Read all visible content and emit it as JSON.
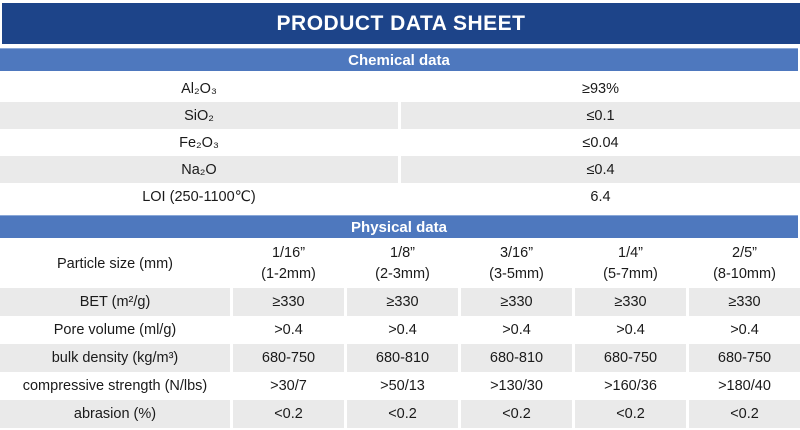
{
  "title": "PRODUCT DATA SHEET",
  "colors": {
    "title_bg": "#1d4489",
    "section_bg": "#4e78be",
    "row_alt_bg": "#eaeaea",
    "text": "#1a1a1a",
    "header_text": "#ffffff"
  },
  "chemical": {
    "header": "Chemical data",
    "rows": [
      {
        "label": "Al₂O₃",
        "value": "≥93%"
      },
      {
        "label": "SiO₂",
        "value": "≤0.1"
      },
      {
        "label": "Fe₂O₃",
        "value": "≤0.04"
      },
      {
        "label": "Na₂O",
        "value": "≤0.4"
      },
      {
        "label": "LOI (250-1100℃)",
        "value": "6.4"
      }
    ]
  },
  "physical": {
    "header": "Physical data",
    "size_row_label": "Particle size (mm)",
    "sizes": [
      {
        "inch": "1/16”",
        "mm": "(1-2mm)"
      },
      {
        "inch": "1/8”",
        "mm": "(2-3mm)"
      },
      {
        "inch": "3/16”",
        "mm": "(3-5mm)"
      },
      {
        "inch": "1/4”",
        "mm": "(5-7mm)"
      },
      {
        "inch": "2/5”",
        "mm": "(8-10mm)"
      }
    ],
    "rows": [
      {
        "label": "BET (m²/g)",
        "values": [
          "≥330",
          "≥330",
          "≥330",
          "≥330",
          "≥330"
        ]
      },
      {
        "label": "Pore volume (ml/g)",
        "values": [
          ">0.4",
          ">0.4",
          ">0.4",
          ">0.4",
          ">0.4"
        ]
      },
      {
        "label": "bulk density (kg/m³)",
        "values": [
          "680-750",
          "680-810",
          "680-810",
          "680-750",
          "680-750"
        ]
      },
      {
        "label": "compressive strength (N/lbs)",
        "values": [
          ">30/7",
          ">50/13",
          ">130/30",
          ">160/36",
          ">180/40"
        ]
      },
      {
        "label": "abrasion (%)",
        "values": [
          "<0.2",
          "<0.2",
          "<0.2",
          "<0.2",
          "<0.2"
        ]
      }
    ]
  }
}
